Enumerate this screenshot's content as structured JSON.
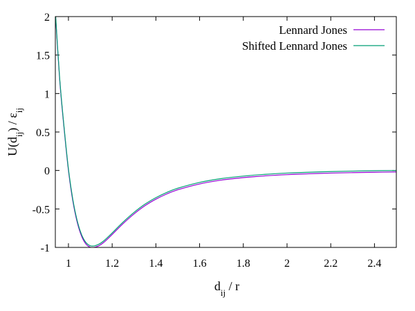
{
  "chart_data": {
    "type": "line",
    "xlabel": {
      "base": "d",
      "sub": "ij",
      "tail": " / r"
    },
    "ylabel": {
      "p1": "U(d",
      "s1": "ij",
      "p2": ") / ε",
      "s2": "ij"
    },
    "xlim": [
      0.94,
      2.5
    ],
    "ylim": [
      -1,
      2
    ],
    "xticks": [
      1,
      1.2,
      1.4,
      1.6,
      1.8,
      2,
      2.2,
      2.4
    ],
    "xtick_labels": [
      "1",
      "1.2",
      "1.4",
      "1.6",
      "1.8",
      "2",
      "2.2",
      "2.4"
    ],
    "yticks": [
      -1,
      -0.5,
      0,
      0.5,
      1,
      1.5,
      2
    ],
    "ytick_labels": [
      "-1",
      "-0.5",
      "0",
      "0.5",
      "1",
      "1.5",
      "2"
    ],
    "legend_position": "top-right",
    "grid": false,
    "series": [
      {
        "name": "Lennard Jones",
        "color": "#9400d3",
        "x": [
          0.94,
          0.96,
          0.98,
          1.0,
          1.02,
          1.04,
          1.06,
          1.08,
          1.1,
          1.12,
          1.14,
          1.16,
          1.18,
          1.2,
          1.25,
          1.3,
          1.35,
          1.4,
          1.45,
          1.5,
          1.6,
          1.7,
          1.8,
          1.9,
          2.0,
          2.1,
          2.2,
          2.3,
          2.4,
          2.5
        ],
        "y": [
          2.051,
          1.174,
          0.545,
          0.0,
          -0.396,
          -0.672,
          -0.853,
          -0.956,
          -0.998,
          -0.999,
          -0.977,
          -0.938,
          -0.887,
          -0.832,
          -0.691,
          -0.565,
          -0.458,
          -0.373,
          -0.305,
          -0.251,
          -0.175,
          -0.125,
          -0.093,
          -0.07,
          -0.054,
          -0.043,
          -0.034,
          -0.028,
          -0.023,
          -0.019
        ]
      },
      {
        "name": "Shifted Lennard Jones",
        "color": "#009e73",
        "x": [
          0.94,
          0.96,
          0.98,
          1.0,
          1.02,
          1.04,
          1.06,
          1.08,
          1.1,
          1.12,
          1.14,
          1.16,
          1.18,
          1.2,
          1.25,
          1.3,
          1.35,
          1.4,
          1.45,
          1.5,
          1.6,
          1.7,
          1.8,
          1.9,
          2.0,
          2.1,
          2.2,
          2.3,
          2.4,
          2.5
        ],
        "y": [
          2.071,
          1.194,
          0.565,
          0.02,
          -0.376,
          -0.652,
          -0.833,
          -0.936,
          -0.978,
          -0.979,
          -0.957,
          -0.918,
          -0.867,
          -0.812,
          -0.671,
          -0.545,
          -0.438,
          -0.353,
          -0.285,
          -0.231,
          -0.155,
          -0.105,
          -0.073,
          -0.05,
          -0.034,
          -0.023,
          -0.014,
          -0.008,
          -0.003,
          0.0
        ]
      }
    ]
  }
}
